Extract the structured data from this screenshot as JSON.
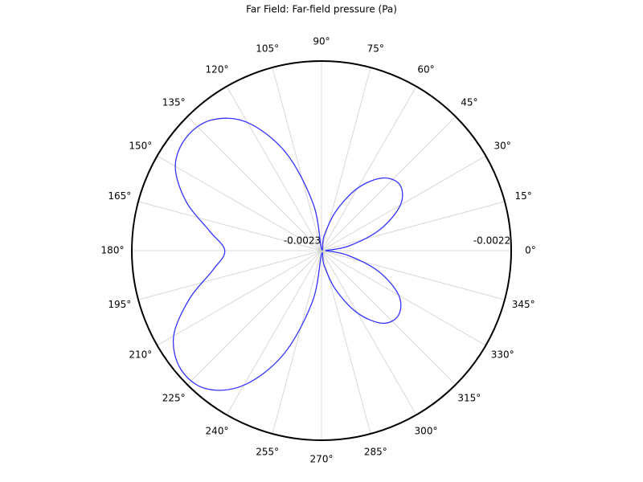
{
  "chart_data": {
    "type": "polar",
    "title": "Far Field: Far-field pressure (Pa)",
    "theta": [
      0,
      10,
      20,
      30,
      40,
      50,
      60,
      70,
      80,
      90,
      100,
      110,
      120,
      130,
      140,
      150,
      160,
      170,
      180,
      190,
      200,
      210,
      220,
      230,
      240,
      250,
      260,
      270,
      280,
      290,
      300,
      310,
      320,
      330,
      340,
      350,
      360
    ],
    "series": [
      {
        "color": "#3333ff",
        "values": [
          -0.002298,
          -0.002285,
          -0.002267,
          -0.002252,
          -0.002246,
          -0.00225,
          -0.002262,
          -0.002278,
          -0.002292,
          -0.002299,
          -0.002275,
          -0.002245,
          -0.002222,
          -0.00221,
          -0.002207,
          -0.002211,
          -0.002224,
          -0.00224,
          -0.002249,
          -0.002242,
          -0.002226,
          -0.00221,
          -0.002203,
          -0.002205,
          -0.002218,
          -0.002242,
          -0.002273,
          -0.002298,
          -0.002292,
          -0.002278,
          -0.002262,
          -0.00225,
          -0.002247,
          -0.002253,
          -0.002268,
          -0.002286,
          -0.002298
        ]
      }
    ],
    "rlim": [
      -0.0023,
      -0.0022
    ],
    "rticks": [
      -0.0023,
      -0.0022
    ],
    "thetaticks": [
      {
        "value": 0,
        "label": "0°"
      },
      {
        "value": 15,
        "label": "15°"
      },
      {
        "value": 30,
        "label": "30°"
      },
      {
        "value": 45,
        "label": "45°"
      },
      {
        "value": 60,
        "label": "60°"
      },
      {
        "value": 75,
        "label": "75°"
      },
      {
        "value": 90,
        "label": "90°"
      },
      {
        "value": 105,
        "label": "105°"
      },
      {
        "value": 120,
        "label": "120°"
      },
      {
        "value": 135,
        "label": "135°"
      },
      {
        "value": 150,
        "label": "150°"
      },
      {
        "value": 165,
        "label": "165°"
      },
      {
        "value": 180,
        "label": "180°"
      },
      {
        "value": 195,
        "label": "195°"
      },
      {
        "value": 210,
        "label": "210°"
      },
      {
        "value": 225,
        "label": "225°"
      },
      {
        "value": 240,
        "label": "240°"
      },
      {
        "value": 255,
        "label": "255°"
      },
      {
        "value": 270,
        "label": "270°"
      },
      {
        "value": 285,
        "label": "285°"
      },
      {
        "value": 300,
        "label": "300°"
      },
      {
        "value": 315,
        "label": "315°"
      },
      {
        "value": 330,
        "label": "330°"
      },
      {
        "value": 345,
        "label": "345°"
      }
    ],
    "grid": true
  }
}
